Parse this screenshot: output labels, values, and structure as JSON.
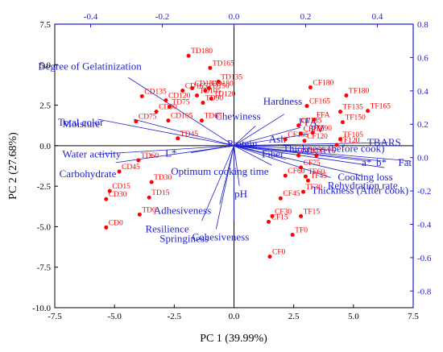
{
  "chart_data": {
    "type": "scatter",
    "subtype": "pca-biplot",
    "title": "",
    "xlabel": "PC 1 (39.99%)",
    "ylabel": "PC 2 (27.68%)",
    "xlim": [
      -7.5,
      7.5
    ],
    "ylim": [
      -10.0,
      7.5
    ],
    "x_ticks": [
      -7.5,
      -5.0,
      -2.5,
      0.0,
      2.5,
      5.0,
      7.5
    ],
    "y_ticks": [
      7.5,
      5.0,
      2.5,
      0.0,
      -2.5,
      -5.0,
      -7.5,
      -10.0
    ],
    "x2lim": [
      -0.5,
      0.5
    ],
    "y2lim": [
      -0.9,
      0.8
    ],
    "x2_ticks": [
      -0.4,
      -0.2,
      0.0,
      0.2,
      0.4
    ],
    "y2_ticks": [
      0.8,
      0.6,
      0.4,
      0.2,
      0.0,
      -0.2,
      -0.4,
      -0.6,
      -0.8
    ],
    "grid": false,
    "colors": {
      "scores": "#ff0000",
      "loadings": "#1f1fd0",
      "axes": "#1f1fd0",
      "frame": "#000000"
    },
    "scores": [
      {
        "label": "TD180",
        "x": -1.9,
        "y": 5.55
      },
      {
        "label": "TD165",
        "x": -1.0,
        "y": 4.8
      },
      {
        "label": "TD135",
        "x": -0.65,
        "y": 3.95
      },
      {
        "label": "CD180",
        "x": -1.05,
        "y": 3.55
      },
      {
        "label": "CD150",
        "x": -1.75,
        "y": 3.55
      },
      {
        "label": "CD165",
        "x": -2.15,
        "y": 3.4
      },
      {
        "label": "TD150",
        "x": -1.2,
        "y": 3.4
      },
      {
        "label": "TD105",
        "x": -1.55,
        "y": 3.1
      },
      {
        "label": "TD120",
        "x": -0.95,
        "y": 2.9
      },
      {
        "label": "TD90",
        "x": -1.3,
        "y": 2.65
      },
      {
        "label": "CD135",
        "x": -3.85,
        "y": 3.05
      },
      {
        "label": "CD120",
        "x": -2.85,
        "y": 2.8
      },
      {
        "label": "TD75",
        "x": -2.7,
        "y": 2.4
      },
      {
        "label": "CD90",
        "x": -3.25,
        "y": 2.1
      },
      {
        "label": "CD75",
        "x": -4.1,
        "y": 1.5
      },
      {
        "label": "CD105",
        "x": -2.75,
        "y": 1.55
      },
      {
        "label": "TD65",
        "x": -1.35,
        "y": 1.55
      },
      {
        "label": "TD45",
        "x": -2.35,
        "y": 0.45
      },
      {
        "label": "TD60",
        "x": -4.0,
        "y": -0.9
      },
      {
        "label": "CD45",
        "x": -4.8,
        "y": -1.6
      },
      {
        "label": "TD30",
        "x": -3.45,
        "y": -2.25
      },
      {
        "label": "CD15",
        "x": -5.2,
        "y": -2.8
      },
      {
        "label": "CD30",
        "x": -5.35,
        "y": -3.3
      },
      {
        "label": "TD15",
        "x": -3.55,
        "y": -3.2
      },
      {
        "label": "TD0",
        "x": -3.95,
        "y": -4.25
      },
      {
        "label": "CD0",
        "x": -5.35,
        "y": -5.05
      },
      {
        "label": "TF180",
        "x": 4.7,
        "y": 3.1
      },
      {
        "label": "CF180",
        "x": 3.2,
        "y": 3.6
      },
      {
        "label": "CF165",
        "x": 3.05,
        "y": 2.45
      },
      {
        "label": "TF135",
        "x": 4.45,
        "y": 2.1
      },
      {
        "label": "TF165",
        "x": 5.6,
        "y": 2.15
      },
      {
        "label": "TF150",
        "x": 4.55,
        "y": 1.45
      },
      {
        "label": "FFA",
        "x": 3.35,
        "y": 1.6
      },
      {
        "label": "CF135",
        "x": 2.7,
        "y": 1.25
      },
      {
        "label": "CF150",
        "x": 2.8,
        "y": 0.75
      },
      {
        "label": "TF90",
        "x": 3.3,
        "y": 0.8
      },
      {
        "label": "TF105",
        "x": 4.45,
        "y": 0.4
      },
      {
        "label": "CF105",
        "x": 2.15,
        "y": 0.4
      },
      {
        "label": "CF120",
        "x": 2.95,
        "y": 0.3
      },
      {
        "label": "TF120",
        "x": 4.3,
        "y": 0.05
      },
      {
        "label": "CF90",
        "x": 2.7,
        "y": -0.6
      },
      {
        "label": "TF75",
        "x": 3.45,
        "y": -0.6
      },
      {
        "label": "CF75",
        "x": 2.8,
        "y": -1.35
      },
      {
        "label": "TF60",
        "x": 3.0,
        "y": -1.9
      },
      {
        "label": "TF45",
        "x": 3.1,
        "y": -2.15
      },
      {
        "label": "CF60",
        "x": 2.15,
        "y": -1.85
      },
      {
        "label": "TF30",
        "x": 2.9,
        "y": -2.85
      },
      {
        "label": "CF45",
        "x": 1.95,
        "y": -3.25
      },
      {
        "label": "CF30",
        "x": 1.6,
        "y": -4.35
      },
      {
        "label": "CF15",
        "x": 1.45,
        "y": -4.7
      },
      {
        "label": "TF15",
        "x": 2.8,
        "y": -4.35
      },
      {
        "label": "TF0",
        "x": 2.45,
        "y": -5.5
      },
      {
        "label": "CF0",
        "x": 1.5,
        "y": -6.85
      }
    ],
    "loadings": [
      {
        "label": "Degree of Gelatinization",
        "x": -0.295,
        "y": 0.48,
        "label_anchor": "start",
        "label_dx": -112,
        "label_dy": -10
      },
      {
        "label": "Total color",
        "x": -0.28,
        "y": 0.23,
        "label_anchor": "start",
        "label_dx": -94,
        "label_dy": 8
      },
      {
        "label": "Moisture",
        "x": -0.38,
        "y": 0.23,
        "label_anchor": "start",
        "label_dx": -44,
        "label_dy": 10
      },
      {
        "label": "Water activity",
        "x": -0.38,
        "y": 0.02,
        "label_anchor": "start",
        "label_dx": -44,
        "label_dy": 4
      },
      {
        "label": "Carbohydrate",
        "x": -0.33,
        "y": -0.03,
        "label_anchor": "start",
        "label_dx": -70,
        "label_dy": 18
      },
      {
        "label": "L*",
        "x": -0.12,
        "y": 0.03,
        "label_anchor": "start",
        "label_dx": -32,
        "label_dy": 5
      },
      {
        "label": "Hardness",
        "x": 0.14,
        "y": 0.26,
        "label_anchor": "start",
        "label_dx": -26,
        "label_dy": -12
      },
      {
        "label": "Chewiness",
        "x": 0.06,
        "y": 0.19,
        "label_anchor": "start",
        "label_dx": -50,
        "label_dy": -8
      },
      {
        "label": "FFA",
        "x": 0.185,
        "y": 0.18,
        "label_anchor": "start",
        "label_dx": -2,
        "label_dy": -3
      },
      {
        "label": "PV",
        "x": 0.205,
        "y": 0.14,
        "label_anchor": "start",
        "label_dx": 4,
        "label_dy": -2
      },
      {
        "label": "TBARS",
        "x": 0.43,
        "y": 0.09,
        "label_anchor": "start",
        "label_dx": -26,
        "label_dy": 4
      },
      {
        "label": "Protein",
        "x": 0.055,
        "y": 0.045,
        "label_anchor": "start",
        "label_dx": -33,
        "label_dy": -4
      },
      {
        "label": "Ash",
        "x": 0.12,
        "y": 0.07,
        "label_anchor": "start",
        "label_dx": -10,
        "label_dy": -4
      },
      {
        "label": "Thickness (before cook)",
        "x": 0.28,
        "y": 0.045,
        "label_anchor": "start",
        "label_dx": -64,
        "label_dy": 2
      },
      {
        "label": "Fiber",
        "x": 0.145,
        "y": -0.01,
        "label_anchor": "start",
        "label_dx": -30,
        "label_dy": -2
      },
      {
        "label": "a*",
        "x": 0.37,
        "y": -0.02,
        "label_anchor": "start",
        "label_dx": -6,
        "label_dy": 6
      },
      {
        "label": "b*",
        "x": 0.41,
        "y": -0.02,
        "label_anchor": "start",
        "label_dx": -6,
        "label_dy": 6
      },
      {
        "label": "Fat",
        "x": 0.49,
        "y": -0.02,
        "label_anchor": "start",
        "label_dx": -14,
        "label_dy": 6
      },
      {
        "label": "Optimum cooking time",
        "x": 0.105,
        "y": -0.045,
        "label_anchor": "start",
        "label_dx": -125,
        "label_dy": 12
      },
      {
        "label": "Cooking loss",
        "x": 0.42,
        "y": -0.06,
        "label_anchor": "start",
        "label_dx": -58,
        "label_dy": 16
      },
      {
        "label": "Rehydration rate",
        "x": 0.36,
        "y": -0.11,
        "label_anchor": "start",
        "label_dx": -44,
        "label_dy": 16
      },
      {
        "label": "Thickness (After cook)",
        "x": 0.27,
        "y": -0.12,
        "label_anchor": "start",
        "label_dx": -24,
        "label_dy": 20
      },
      {
        "label": "pH",
        "x": 0.015,
        "y": -0.17,
        "label_anchor": "start",
        "label_dx": -6,
        "label_dy": 14
      },
      {
        "label": "Adhesiveness",
        "x": -0.04,
        "y": -0.28,
        "label_anchor": "start",
        "label_dx": -82,
        "label_dy": 12
      },
      {
        "label": "Resilience",
        "x": -0.09,
        "y": -0.38,
        "label_anchor": "start",
        "label_dx": -70,
        "label_dy": 14
      },
      {
        "label": "Springiness",
        "x": -0.05,
        "y": -0.43,
        "label_anchor": "start",
        "label_dx": -70,
        "label_dy": 16
      },
      {
        "label": "Cohesiveness",
        "x": 0.0,
        "y": -0.38,
        "label_anchor": "start",
        "label_dx": -52,
        "label_dy": 24
      }
    ]
  }
}
